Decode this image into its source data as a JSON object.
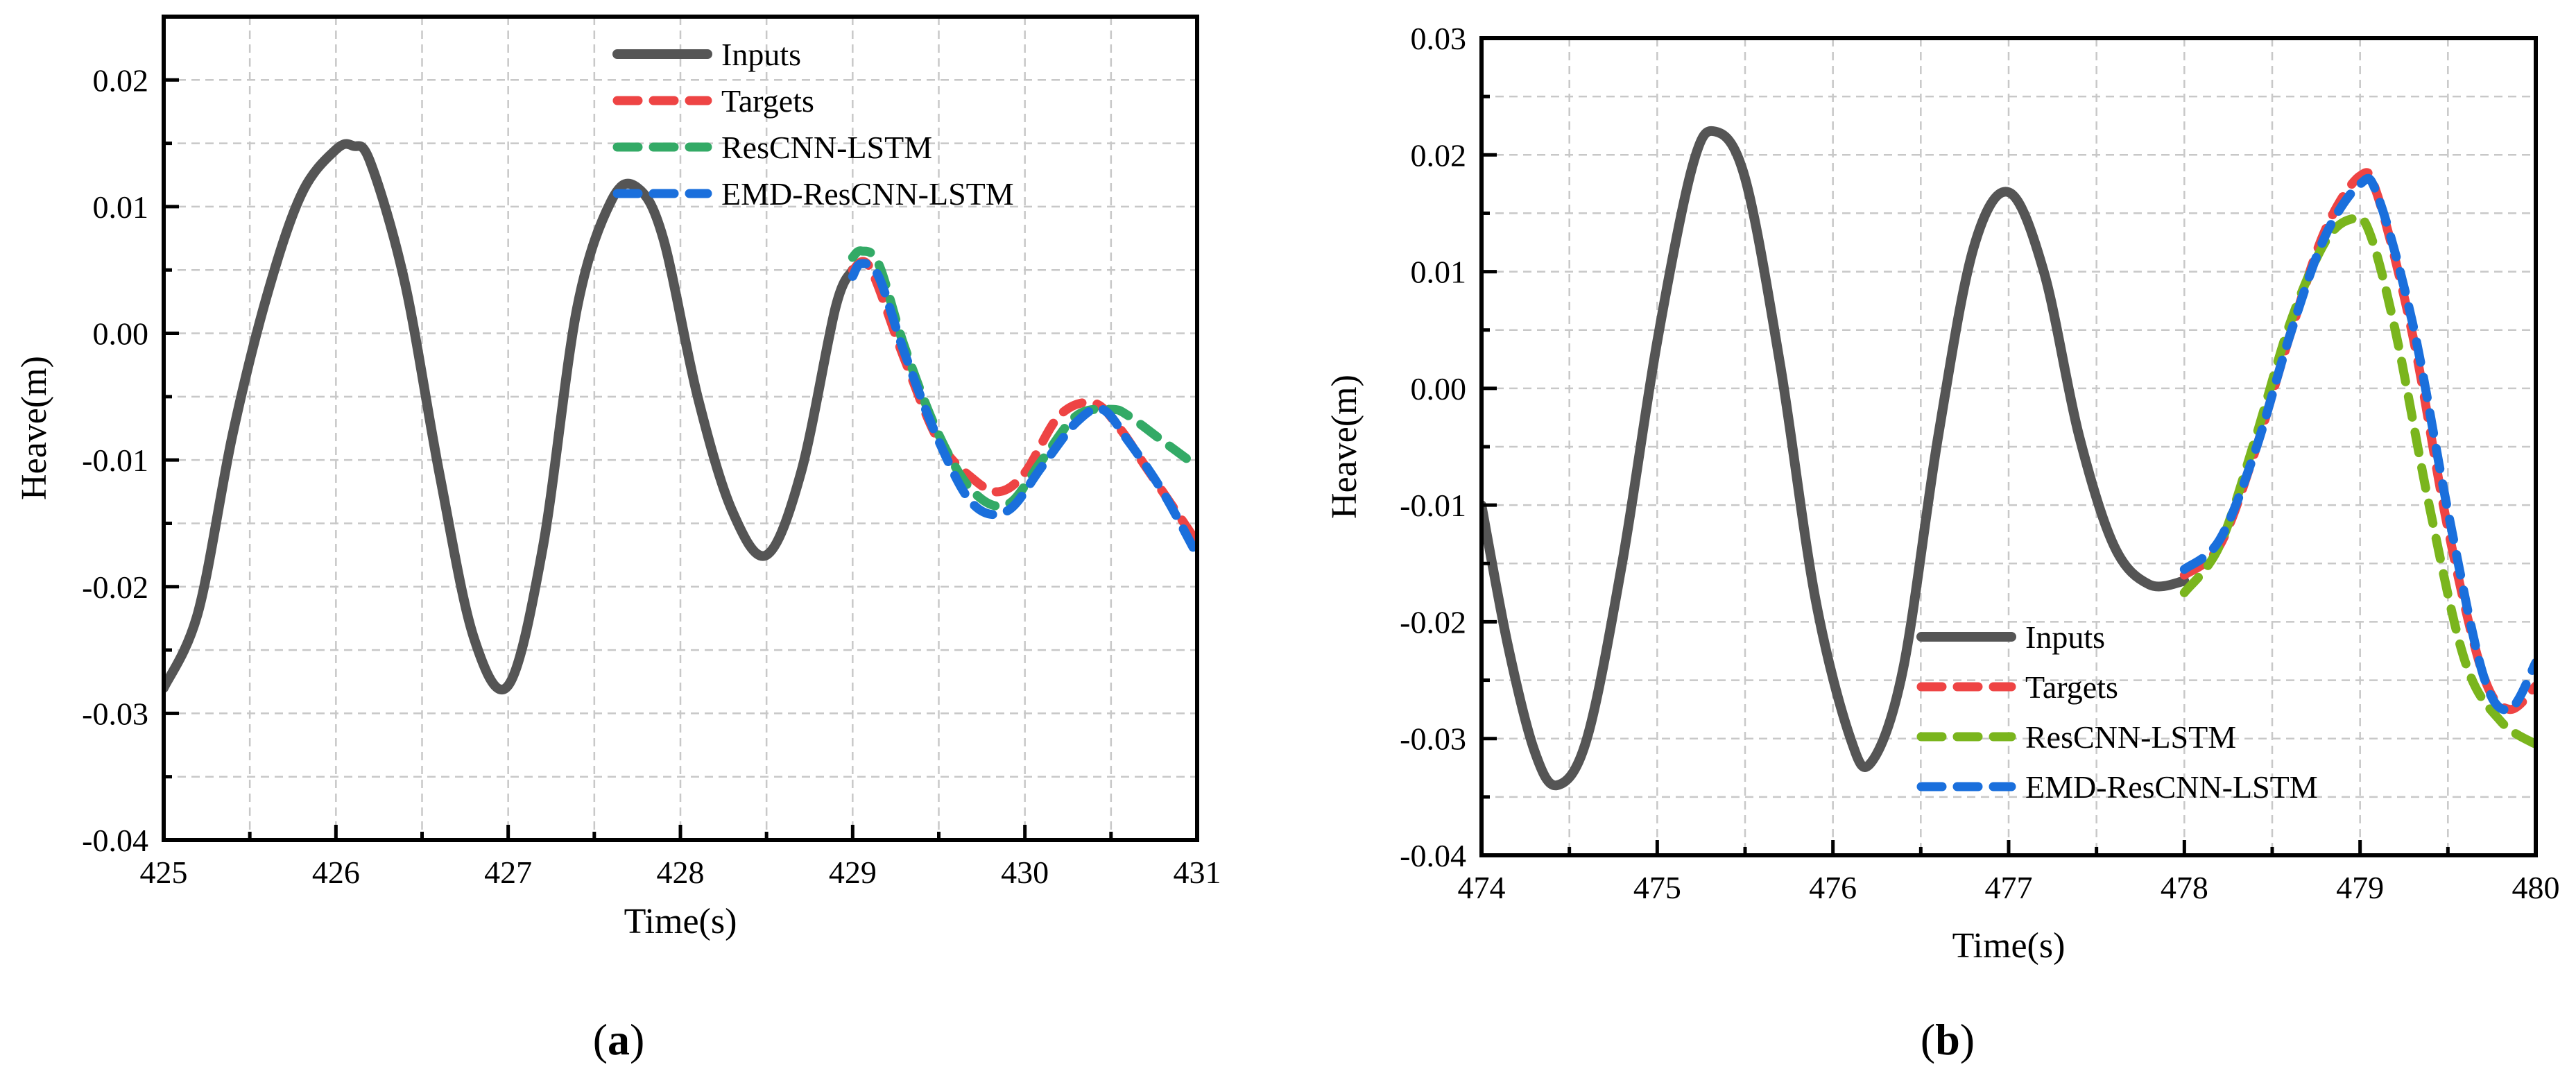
{
  "chart_data": [
    {
      "type": "line",
      "panel_label": "a",
      "xlabel": "Time(s)",
      "ylabel": "Heave(m)",
      "xlim": [
        425,
        431
      ],
      "ylim": [
        -0.04,
        0.025
      ],
      "xticks": [
        425,
        426,
        427,
        428,
        429,
        430,
        431
      ],
      "yticks": [
        -0.04,
        -0.03,
        -0.02,
        -0.01,
        0.0,
        0.01,
        0.02
      ],
      "xtick_labels": [
        "425",
        "426",
        "427",
        "428",
        "429",
        "430",
        "431"
      ],
      "ytick_labels": [
        "-0.04",
        "-0.03",
        "-0.02",
        "-0.01",
        "0.00",
        "0.01",
        "0.02"
      ],
      "grid": true,
      "legend_position": "top-right",
      "series": [
        {
          "name": "Inputs",
          "color": "#555555",
          "style": "solid",
          "x": [
            425.0,
            425.2,
            425.4,
            425.6,
            425.8,
            426.0,
            426.1,
            426.2,
            426.4,
            426.6,
            426.8,
            427.0,
            427.2,
            427.4,
            427.6,
            427.75,
            427.9,
            428.1,
            428.3,
            428.5,
            428.7,
            428.9,
            429.0
          ],
          "y": [
            -0.028,
            -0.022,
            -0.008,
            0.003,
            0.011,
            0.0145,
            0.0148,
            0.0135,
            0.004,
            -0.011,
            -0.024,
            -0.0278,
            -0.017,
            0.002,
            0.0105,
            0.0115,
            0.0075,
            -0.005,
            -0.014,
            -0.0175,
            -0.011,
            0.002,
            0.005
          ]
        },
        {
          "name": "Targets",
          "color": "#ee4444",
          "style": "dashed",
          "x": [
            429.0,
            429.1,
            429.3,
            429.5,
            429.7,
            429.85,
            430.0,
            430.2,
            430.4,
            430.55,
            430.7,
            430.9,
            431.0
          ],
          "y": [
            0.005,
            0.0052,
            -0.002,
            -0.0085,
            -0.0115,
            -0.0125,
            -0.011,
            -0.0065,
            -0.0055,
            -0.0075,
            -0.0105,
            -0.0145,
            -0.0165
          ]
        },
        {
          "name": "ResCNN-LSTM",
          "color": "#33aa66",
          "style": "dashed",
          "x": [
            429.0,
            429.05,
            429.15,
            429.3,
            429.5,
            429.7,
            429.9,
            430.1,
            430.3,
            430.5,
            430.6,
            430.8,
            431.0
          ],
          "y": [
            0.006,
            0.0065,
            0.0055,
            -0.001,
            -0.008,
            -0.0125,
            -0.0135,
            -0.01,
            -0.0065,
            -0.006,
            -0.0065,
            -0.0085,
            -0.0105
          ]
        },
        {
          "name": "EMD-ResCNN-LSTM",
          "color": "#1a6fdc",
          "style": "dashed",
          "x": [
            429.0,
            429.05,
            429.15,
            429.3,
            429.5,
            429.7,
            429.9,
            430.1,
            430.3,
            430.45,
            430.6,
            430.8,
            431.0
          ],
          "y": [
            0.0045,
            0.0055,
            0.0045,
            -0.0015,
            -0.0085,
            -0.0135,
            -0.014,
            -0.0105,
            -0.007,
            -0.006,
            -0.0085,
            -0.0125,
            -0.0175
          ]
        }
      ]
    },
    {
      "type": "line",
      "panel_label": "b",
      "xlabel": "Time(s)",
      "ylabel": "Heave(m)",
      "xlim": [
        474,
        480
      ],
      "ylim": [
        -0.04,
        0.03
      ],
      "xticks": [
        474,
        475,
        476,
        477,
        478,
        479,
        480
      ],
      "yticks": [
        -0.04,
        -0.03,
        -0.02,
        -0.01,
        0.0,
        0.01,
        0.02,
        0.03
      ],
      "xtick_labels": [
        "474",
        "475",
        "476",
        "477",
        "478",
        "479",
        "480"
      ],
      "ytick_labels": [
        "-0.04",
        "-0.03",
        "-0.02",
        "-0.01",
        "0.00",
        "0.01",
        "0.02",
        "0.03"
      ],
      "grid": true,
      "legend_position": "bottom-right",
      "series": [
        {
          "name": "Inputs",
          "color": "#555555",
          "style": "solid",
          "x": [
            474.0,
            474.15,
            474.3,
            474.43,
            474.6,
            474.8,
            475.0,
            475.2,
            475.33,
            475.5,
            475.7,
            475.9,
            476.1,
            476.22,
            476.4,
            476.6,
            476.8,
            477.0,
            477.2,
            477.4,
            477.6,
            477.8,
            478.0
          ],
          "y": [
            -0.01,
            -0.022,
            -0.031,
            -0.034,
            -0.03,
            -0.015,
            0.004,
            0.019,
            0.022,
            0.018,
            0.002,
            -0.018,
            -0.03,
            -0.032,
            -0.024,
            -0.004,
            0.012,
            0.0168,
            0.01,
            -0.004,
            -0.0135,
            -0.0168,
            -0.0165
          ]
        },
        {
          "name": "Targets",
          "color": "#ee4444",
          "style": "dashed",
          "x": [
            478.0,
            478.2,
            478.4,
            478.6,
            478.8,
            479.0,
            479.1,
            479.3,
            479.5,
            479.7,
            479.85,
            480.0
          ],
          "y": [
            -0.016,
            -0.0135,
            -0.0055,
            0.0045,
            0.0135,
            0.0182,
            0.0165,
            0.0045,
            -0.012,
            -0.0245,
            -0.0275,
            -0.0255
          ]
        },
        {
          "name": "ResCNN-LSTM",
          "color": "#7ab51d",
          "style": "dashed",
          "x": [
            478.0,
            478.2,
            478.4,
            478.6,
            478.8,
            478.95,
            479.05,
            479.2,
            479.4,
            479.6,
            479.8,
            480.0
          ],
          "y": [
            -0.0175,
            -0.0135,
            -0.0045,
            0.0055,
            0.0125,
            0.0145,
            0.0135,
            0.005,
            -0.0105,
            -0.0235,
            -0.0285,
            -0.0305
          ]
        },
        {
          "name": "EMD-ResCNN-LSTM",
          "color": "#1a6fdc",
          "style": "dashed",
          "x": [
            478.0,
            478.2,
            478.4,
            478.6,
            478.8,
            479.0,
            479.1,
            479.3,
            479.5,
            479.7,
            479.85,
            480.0
          ],
          "y": [
            -0.0155,
            -0.013,
            -0.0055,
            0.0045,
            0.013,
            0.0175,
            0.0165,
            0.0055,
            -0.0105,
            -0.0245,
            -0.0275,
            -0.0235
          ]
        }
      ]
    }
  ]
}
